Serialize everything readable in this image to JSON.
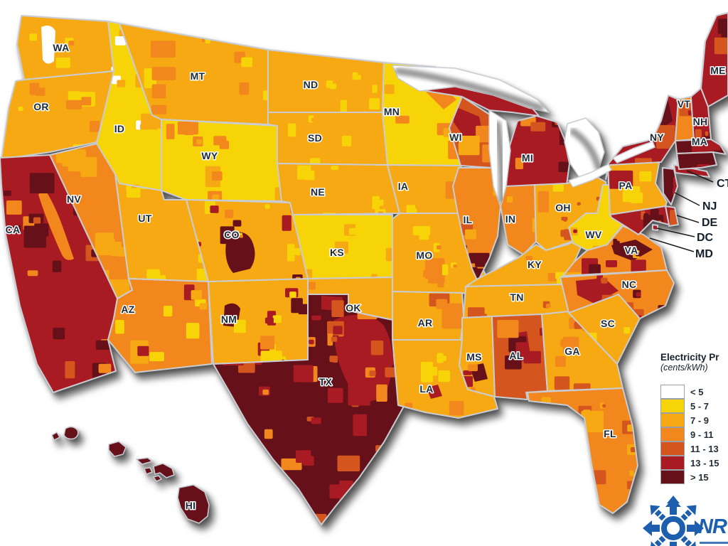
{
  "legend": {
    "title": "Electricity Pr",
    "subtitle": "(cents/kWh)",
    "entries": [
      {
        "label": "< 5",
        "color": "#FFFFFF"
      },
      {
        "label": "5 - 7",
        "color": "#F7D408"
      },
      {
        "label": "7 - 9",
        "color": "#F6A913"
      },
      {
        "label": "9 - 11",
        "color": "#F1871D"
      },
      {
        "label": "11 - 13",
        "color": "#D4561E"
      },
      {
        "label": "13 - 15",
        "color": "#A81B22"
      },
      {
        "label": "> 15",
        "color": "#66101A"
      }
    ]
  },
  "map": {
    "states": {
      "WA": {
        "label": "WA",
        "fill": "#F6A913",
        "patches": [
          "#F7D408",
          "#FFFFFF",
          "#F7D408",
          "#F1871D"
        ]
      },
      "OR": {
        "label": "OR",
        "fill": "#F6A913",
        "patches": [
          "#F1871D",
          "#F7D408",
          "#F1871D"
        ]
      },
      "ID": {
        "label": "ID",
        "fill": "#F7D408",
        "patches": [
          "#F6A913",
          "#FFFFFF",
          "#F6A913"
        ]
      },
      "MT": {
        "label": "MT",
        "fill": "#F6A913",
        "patches": [
          "#F7D408",
          "#F1871D"
        ]
      },
      "WY": {
        "label": "WY",
        "fill": "#F7D408",
        "patches": [
          "#F6A913",
          "#F1871D"
        ]
      },
      "NV": {
        "label": "NV",
        "fill": "#F1871D",
        "patches": [
          "#F6A913"
        ]
      },
      "UT": {
        "label": "UT",
        "fill": "#F6A913",
        "patches": [
          "#F7D408",
          "#F7D408"
        ]
      },
      "CA": {
        "label": "CA",
        "fill": "#A81B22",
        "patches": [
          "#D4561E",
          "#F1871D",
          "#66101A"
        ]
      },
      "AZ": {
        "label": "AZ",
        "fill": "#F1871D",
        "patches": [
          "#F6A913",
          "#A81B22",
          "#F7D408"
        ]
      },
      "NM": {
        "label": "NM",
        "fill": "#F6A913",
        "patches": [
          "#A81B22",
          "#F7D408",
          "#66101A",
          "#F1871D"
        ]
      },
      "CO": {
        "label": "CO",
        "fill": "#F6A913",
        "patches": [
          "#F1871D",
          "#A81B22",
          "#66101A",
          "#F7D408"
        ]
      },
      "ND": {
        "label": "ND",
        "fill": "#F6A913",
        "patches": [
          "#F7D408",
          "#F7D408"
        ]
      },
      "SD": {
        "label": "SD",
        "fill": "#F6A913",
        "patches": [
          "#F7D408",
          "#F6A913",
          "#F7D408"
        ]
      },
      "NE": {
        "label": "NE",
        "fill": "#F6A913",
        "patches": [
          "#F7D408",
          "#F1871D",
          "#F7D408"
        ]
      },
      "KS": {
        "label": "KS",
        "fill": "#F7D408",
        "patches": [
          "#F6A913",
          "#F7D408"
        ]
      },
      "OK": {
        "label": "OK",
        "fill": "#F6A913",
        "patches": [
          "#F1871D",
          "#D4561E"
        ]
      },
      "TX": {
        "label": "TX",
        "fill": "#66101A",
        "patches": [
          "#A81B22",
          "#D4561E",
          "#A81B22",
          "#F1871D"
        ]
      },
      "MN": {
        "label": "MN",
        "fill": "#F7D408",
        "patches": [
          "#F6A913",
          "#F1871D",
          "#F7D408"
        ]
      },
      "IA": {
        "label": "IA",
        "fill": "#F6A913",
        "patches": [
          "#F7D408",
          "#F1871D",
          "#F7D408"
        ]
      },
      "MO": {
        "label": "MO",
        "fill": "#F6A913",
        "patches": [
          "#F7D408",
          "#F1871D"
        ]
      },
      "AR": {
        "label": "AR",
        "fill": "#F6A913",
        "patches": [
          "#F1871D",
          "#D4561E",
          "#F1871D"
        ]
      },
      "LA": {
        "label": "LA",
        "fill": "#F6A913",
        "patches": [
          "#F7D408",
          "#F1871D"
        ]
      },
      "WI": {
        "label": "WI",
        "fill": "#D4561E",
        "patches": [
          "#A81B22",
          "#F1871D",
          "#F6A913"
        ]
      },
      "MI": {
        "label": "MI",
        "fill": "#A81B22",
        "patches": [
          "#D4561E",
          "#66101A",
          "#F1871D"
        ]
      },
      "IL": {
        "label": "IL",
        "fill": "#F1871D",
        "patches": [
          "#D4561E",
          "#F6A913",
          "#66101A"
        ]
      },
      "IN": {
        "label": "IN",
        "fill": "#F1871D",
        "patches": [
          "#F6A913",
          "#D4561E"
        ]
      },
      "OH": {
        "label": "OH",
        "fill": "#F6A913",
        "patches": [
          "#F1871D",
          "#D4561E",
          "#F7D408"
        ]
      },
      "KY": {
        "label": "KY",
        "fill": "#F6A913",
        "patches": [
          "#F7D408",
          "#F1871D"
        ]
      },
      "TN": {
        "label": "TN",
        "fill": "#F6A913",
        "patches": [
          "#F1871D",
          "#D4561E"
        ]
      },
      "MS": {
        "label": "MS",
        "fill": "#F6A913",
        "patches": [
          "#F1871D",
          "#A81B22"
        ]
      },
      "AL": {
        "label": "AL",
        "fill": "#D4561E",
        "patches": [
          "#A81B22",
          "#F1871D",
          "#66101A"
        ]
      },
      "GA": {
        "label": "GA",
        "fill": "#F6A913",
        "patches": [
          "#F1871D",
          "#D4561E"
        ]
      },
      "FL": {
        "label": "FL",
        "fill": "#F1871D",
        "patches": [
          "#F6A913",
          "#D4561E"
        ]
      },
      "SC": {
        "label": "SC",
        "fill": "#F6A913",
        "patches": [
          "#F1871D",
          "#F7D408"
        ]
      },
      "NC": {
        "label": "NC",
        "fill": "#F1871D",
        "patches": [
          "#A81B22",
          "#66101A",
          "#D4561E"
        ]
      },
      "VA": {
        "label": "VA",
        "fill": "#F1871D",
        "patches": [
          "#A81B22",
          "#66101A",
          "#F6A913"
        ]
      },
      "WV": {
        "label": "WV",
        "fill": "#F7D408",
        "patches": [
          "#F6A913",
          "#A81B22"
        ]
      },
      "PA": {
        "label": "PA",
        "fill": "#F6A913",
        "patches": [
          "#F1871D",
          "#A81B22",
          "#F7D408"
        ]
      },
      "NY": {
        "label": "NY",
        "fill": "#A81B22",
        "patches": [
          "#66101A",
          "#D4561E"
        ]
      },
      "VT": {
        "label": "VT",
        "fill": "#F1871D",
        "patches": [
          "#D4561E",
          "#A81B22"
        ]
      },
      "NH": {
        "label": "NH",
        "fill": "#A81B22",
        "patches": [
          "#66101A",
          "#D4561E"
        ]
      },
      "MA": {
        "label": "MA",
        "fill": "#66101A",
        "patches": [
          "#A81B22"
        ]
      },
      "ME": {
        "label": "ME",
        "fill": "#A81B22",
        "patches": [
          "#66101A",
          "#D4561E"
        ]
      },
      "CT": {
        "label": "",
        "fill": "#66101A",
        "patches": [
          "#A81B22"
        ]
      },
      "NJ": {
        "label": "",
        "fill": "#66101A",
        "patches": [
          "#A81B22"
        ]
      },
      "DE": {
        "label": "",
        "fill": "#A81B22",
        "patches": [
          "#D4561E"
        ]
      },
      "MD": {
        "label": "",
        "fill": "#A81B22",
        "patches": [
          "#D4561E",
          "#66101A"
        ]
      },
      "DC": {
        "label": "",
        "fill": "#A81B22",
        "patches": []
      },
      "HI": {
        "label": "HI",
        "fill": "#66101A",
        "patches": []
      }
    }
  },
  "callouts": [
    {
      "id": "CT",
      "label": "CT"
    },
    {
      "id": "NJ",
      "label": "NJ"
    },
    {
      "id": "DE",
      "label": "DE"
    },
    {
      "id": "DC",
      "label": "DC"
    },
    {
      "id": "MD",
      "label": "MD"
    }
  ],
  "logo": {
    "text": "NR",
    "color": "#1D5FAE"
  }
}
